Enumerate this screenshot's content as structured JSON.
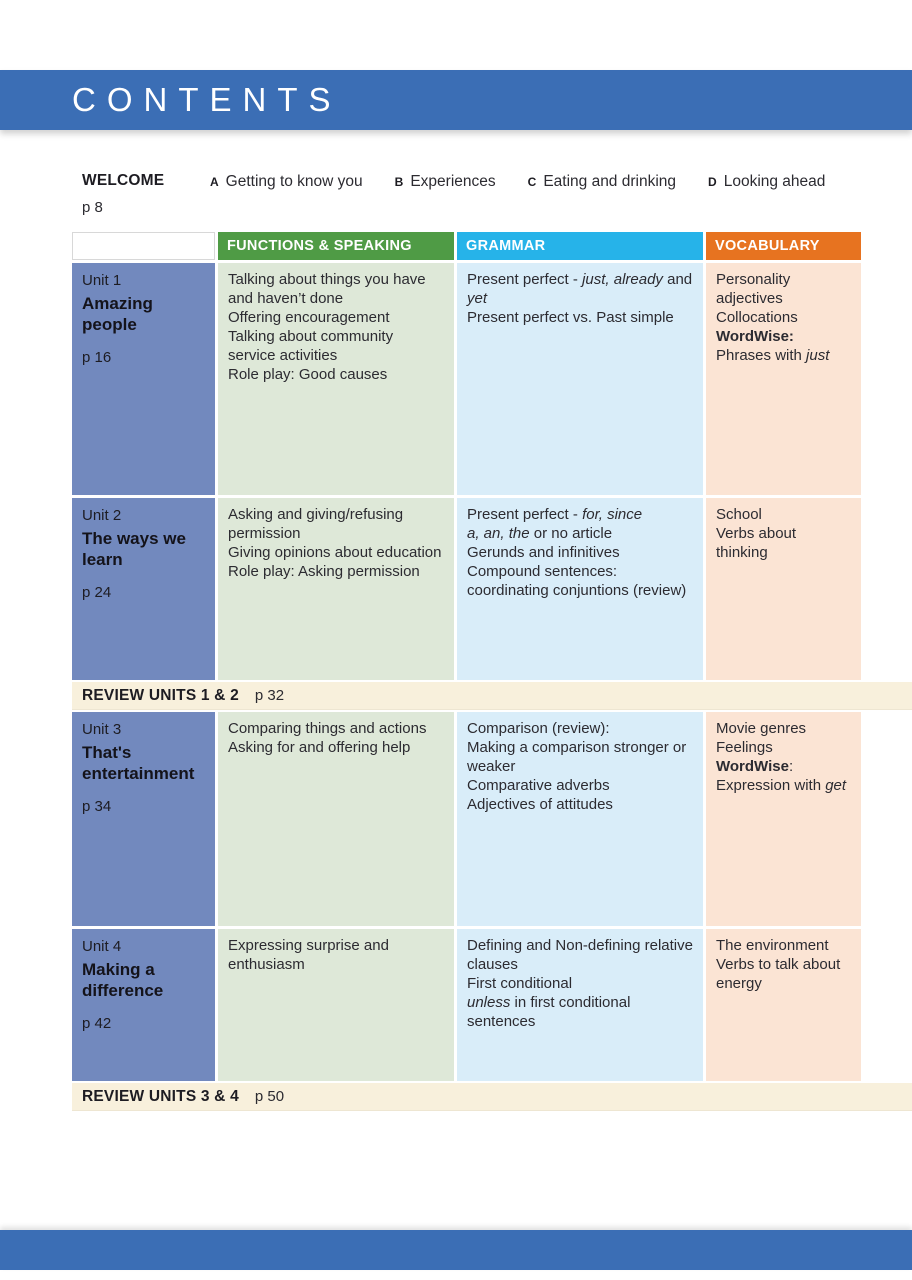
{
  "header": {
    "title": "CONTENTS",
    "bar_color": "#3b6eb5"
  },
  "welcome": {
    "label": "WELCOME",
    "page": "p 8",
    "items": [
      {
        "letter": "A",
        "text": "Getting to know you"
      },
      {
        "letter": "B",
        "text": "Experiences"
      },
      {
        "letter": "C",
        "text": "Eating and drinking"
      },
      {
        "letter": "D",
        "text": "Looking ahead"
      }
    ]
  },
  "table": {
    "columns": [
      {
        "label": "",
        "color": "#ffffff"
      },
      {
        "label": "FUNCTIONS & SPEAKING",
        "color": "#4f9b45"
      },
      {
        "label": "GRAMMAR",
        "color": "#26b3e9"
      },
      {
        "label": "VOCABULARY",
        "color": "#e77320"
      }
    ],
    "cell_colors": {
      "unit": "#7289be",
      "functions": "#dee8d8",
      "grammar": "#d9edf9",
      "vocabulary": "#fbe4d4",
      "review": "#f8f0dc"
    },
    "units": [
      {
        "unit": "Unit 1",
        "title": "Amazing people",
        "page": "p 16",
        "functions": [
          [
            [
              "Talking about things you have and haven’t done",
              "n"
            ]
          ],
          [
            [
              "Offering encouragement",
              "n"
            ]
          ],
          [
            [
              "Talking about community service activities",
              "n"
            ]
          ],
          [
            [
              "Role play: Good causes",
              "n"
            ]
          ]
        ],
        "grammar": [
          [
            [
              "Present perfect - ",
              "n"
            ],
            [
              "just, already",
              "i"
            ],
            [
              " and ",
              "n"
            ],
            [
              "yet",
              "i"
            ]
          ],
          [
            [
              "Present perfect vs. Past simple",
              "n"
            ]
          ]
        ],
        "vocabulary": [
          [
            [
              "Personality adjectives",
              "n"
            ]
          ],
          [
            [
              "Collocations",
              "n"
            ]
          ],
          [
            [
              "WordWise:",
              "b"
            ],
            [
              " Phrases with ",
              "n"
            ],
            [
              "just",
              "i"
            ]
          ]
        ]
      },
      {
        "unit": "Unit 2",
        "title": "The ways we learn",
        "page": "p 24",
        "functions": [
          [
            [
              "Asking and giving/refusing permission",
              "n"
            ]
          ],
          [
            [
              "Giving opinions about education",
              "n"
            ]
          ],
          [
            [
              "Role play: Asking permission",
              "n"
            ]
          ]
        ],
        "grammar": [
          [
            [
              "Present perfect - ",
              "n"
            ],
            [
              "for, since",
              "i"
            ]
          ],
          [
            [
              "a, an, the",
              "i"
            ],
            [
              " or no article",
              "n"
            ]
          ],
          [
            [
              "Gerunds and infinitives",
              "n"
            ]
          ],
          [
            [
              "Compound sentences: coordinating conjuntions (review)",
              "n"
            ]
          ]
        ],
        "vocabulary": [
          [
            [
              "School",
              "n"
            ]
          ],
          [
            [
              "Verbs about thinking",
              "n"
            ]
          ]
        ]
      },
      {
        "unit": "Unit 3",
        "title": "That's entertainment",
        "page": "p 34",
        "functions": [
          [
            [
              "Comparing things and actions",
              "n"
            ]
          ],
          [
            [
              "Asking for and offering help",
              "n"
            ]
          ]
        ],
        "grammar": [
          [
            [
              "Comparison (review):",
              "n"
            ]
          ],
          [
            [
              "Making a comparison stronger or weaker",
              "n"
            ]
          ],
          [
            [
              "Comparative adverbs",
              "n"
            ]
          ],
          [
            [
              "Adjectives of attitudes",
              "n"
            ]
          ]
        ],
        "vocabulary": [
          [
            [
              "Movie genres",
              "n"
            ]
          ],
          [
            [
              "Feelings",
              "n"
            ]
          ],
          [
            [
              "WordWise",
              "b"
            ],
            [
              ":",
              "n"
            ]
          ],
          [
            [
              "Expression with ",
              "n"
            ],
            [
              "get",
              "i"
            ]
          ]
        ]
      },
      {
        "unit": "Unit 4",
        "title": "Making a difference",
        "page": "p 42",
        "functions": [
          [
            [
              "Expressing surprise and enthusiasm",
              "n"
            ]
          ]
        ],
        "grammar": [
          [
            [
              "Defining and Non-defining relative clauses",
              "n"
            ]
          ],
          [
            [
              "First conditional",
              "n"
            ]
          ],
          [
            [
              "unless",
              "i"
            ],
            [
              " in first conditional sentences",
              "n"
            ]
          ]
        ],
        "vocabulary": [
          [
            [
              "The environment",
              "n"
            ]
          ],
          [
            [
              "Verbs to talk about energy",
              "n"
            ]
          ]
        ]
      }
    ],
    "reviews": [
      {
        "label": "REVIEW UNITS 1 & 2",
        "page": "p 32"
      },
      {
        "label": "REVIEW UNITS 3 & 4",
        "page": "p 50"
      }
    ]
  },
  "footer": {
    "bar_color": "#3b6eb5"
  }
}
